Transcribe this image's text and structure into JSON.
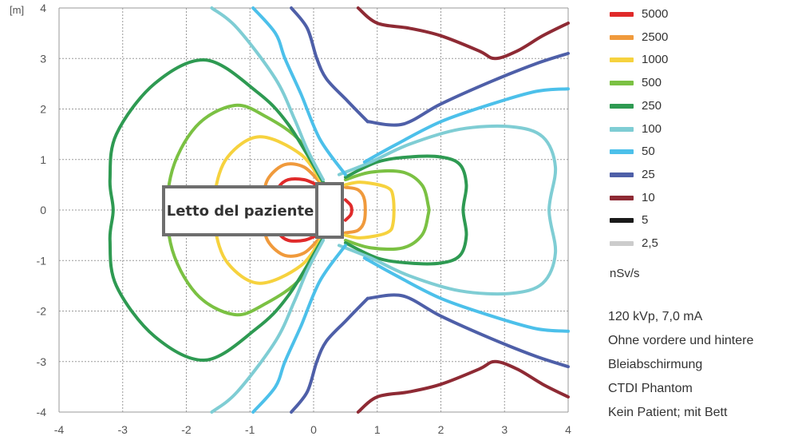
{
  "chart_data": {
    "type": "contour",
    "title": "",
    "xlabel": "",
    "ylabel": "[m]",
    "xlim": [
      -4,
      4
    ],
    "ylim": [
      -4,
      4
    ],
    "x_ticks": [
      -4,
      -3,
      -2,
      -1,
      0,
      1,
      2,
      3,
      4
    ],
    "y_ticks": [
      4,
      3,
      2,
      1,
      0,
      -1,
      -2,
      -3,
      -4
    ],
    "grid": true,
    "legend_position": "right",
    "unit": "nSv/s",
    "annotation": "Letto del paziente",
    "series": [
      {
        "name": "5000",
        "color": "#e02a2a"
      },
      {
        "name": "2500",
        "color": "#f09a3c"
      },
      {
        "name": "1000",
        "color": "#f6d23e"
      },
      {
        "name": "500",
        "color": "#7bc143"
      },
      {
        "name": "250",
        "color": "#2e9a52"
      },
      {
        "name": "100",
        "color": "#7fcdd4"
      },
      {
        "name": "50",
        "color": "#4cc0ea"
      },
      {
        "name": "25",
        "color": "#4e5fa8"
      },
      {
        "name": "10",
        "color": "#8e2a34"
      },
      {
        "name": "5",
        "color": "#1a1a1a"
      },
      {
        "name": "2,5",
        "color": "#cccccc"
      }
    ],
    "contours": [
      {
        "level": "5000",
        "paths": [
          [
            [
              0.05,
              0.5
            ],
            [
              -0.15,
              0.6
            ],
            [
              -0.4,
              0.6
            ],
            [
              -0.55,
              0.45
            ],
            [
              -0.58,
              0.25
            ],
            [
              -0.58,
              -0.25
            ],
            [
              -0.55,
              -0.45
            ],
            [
              -0.4,
              -0.6
            ],
            [
              -0.15,
              -0.6
            ],
            [
              0.05,
              -0.5
            ]
          ],
          [
            [
              0.5,
              0.2
            ],
            [
              0.58,
              0.1
            ],
            [
              0.6,
              0
            ],
            [
              0.58,
              -0.1
            ],
            [
              0.5,
              -0.2
            ]
          ]
        ]
      },
      {
        "level": "2500",
        "paths": [
          [
            [
              0.1,
              0.55
            ],
            [
              -0.15,
              0.85
            ],
            [
              -0.45,
              0.9
            ],
            [
              -0.7,
              0.65
            ],
            [
              -0.78,
              0.3
            ],
            [
              -0.78,
              -0.3
            ],
            [
              -0.7,
              -0.65
            ],
            [
              -0.45,
              -0.9
            ],
            [
              -0.15,
              -0.85
            ],
            [
              0.1,
              -0.55
            ]
          ],
          [
            [
              0.5,
              0.45
            ],
            [
              0.7,
              0.4
            ],
            [
              0.8,
              0.2
            ],
            [
              0.8,
              -0.2
            ],
            [
              0.7,
              -0.4
            ],
            [
              0.5,
              -0.45
            ]
          ]
        ]
      },
      {
        "level": "1000",
        "paths": [
          [
            [
              0.15,
              0.5
            ],
            [
              -0.2,
              1.1
            ],
            [
              -0.85,
              1.45
            ],
            [
              -1.35,
              1.05
            ],
            [
              -1.55,
              0.35
            ],
            [
              -1.55,
              -0.35
            ],
            [
              -1.35,
              -1.05
            ],
            [
              -0.85,
              -1.45
            ],
            [
              -0.2,
              -1.1
            ],
            [
              0.15,
              -0.5
            ]
          ],
          [
            [
              0.5,
              0.5
            ],
            [
              0.75,
              0.55
            ],
            [
              1.15,
              0.45
            ],
            [
              1.25,
              0.25
            ],
            [
              1.25,
              -0.25
            ],
            [
              1.15,
              -0.45
            ],
            [
              0.75,
              -0.55
            ],
            [
              0.5,
              -0.5
            ]
          ]
        ]
      },
      {
        "level": "500",
        "paths": [
          [
            [
              0.15,
              0.55
            ],
            [
              -0.2,
              1.35
            ],
            [
              -0.75,
              1.85
            ],
            [
              -1.25,
              2.07
            ],
            [
              -1.85,
              1.65
            ],
            [
              -2.25,
              0.65
            ],
            [
              -2.25,
              -0.65
            ],
            [
              -1.85,
              -1.65
            ],
            [
              -1.25,
              -2.07
            ],
            [
              -0.75,
              -1.85
            ],
            [
              -0.2,
              -1.35
            ],
            [
              0.15,
              -0.55
            ]
          ],
          [
            [
              0.5,
              0.6
            ],
            [
              0.9,
              0.75
            ],
            [
              1.4,
              0.75
            ],
            [
              1.7,
              0.5
            ],
            [
              1.8,
              0.1
            ],
            [
              1.8,
              -0.1
            ],
            [
              1.7,
              -0.5
            ],
            [
              1.4,
              -0.75
            ],
            [
              0.9,
              -0.75
            ],
            [
              0.5,
              -0.6
            ]
          ]
        ]
      },
      {
        "level": "250",
        "paths": [
          [
            [
              0.15,
              0.55
            ],
            [
              -0.4,
              1.7
            ],
            [
              -0.9,
              2.35
            ],
            [
              -1.7,
              2.97
            ],
            [
              -2.5,
              2.5
            ],
            [
              -3.1,
              1.5
            ],
            [
              -3.2,
              0.6
            ],
            [
              -3.15,
              0
            ],
            [
              -3.2,
              -0.6
            ],
            [
              -3.1,
              -1.5
            ],
            [
              -2.5,
              -2.5
            ],
            [
              -1.7,
              -2.97
            ],
            [
              -0.9,
              -2.35
            ],
            [
              -0.4,
              -1.7
            ],
            [
              0.15,
              -0.55
            ]
          ],
          [
            [
              0.5,
              0.65
            ],
            [
              1.0,
              0.95
            ],
            [
              1.5,
              1.05
            ],
            [
              2.0,
              1.05
            ],
            [
              2.3,
              0.9
            ],
            [
              2.4,
              0.5
            ],
            [
              2.35,
              0
            ],
            [
              2.4,
              -0.5
            ],
            [
              2.3,
              -0.9
            ],
            [
              2.0,
              -1.05
            ],
            [
              1.5,
              -1.05
            ],
            [
              1.0,
              -0.95
            ],
            [
              0.5,
              -0.65
            ]
          ]
        ]
      },
      {
        "level": "100",
        "paths": [
          [
            [
              0.15,
              0.6
            ],
            [
              -0.1,
              1.2
            ],
            [
              -0.3,
              1.8
            ],
            [
              -0.6,
              2.6
            ],
            [
              -1.2,
              3.6
            ],
            [
              -1.6,
              4.0
            ]
          ],
          [
            [
              0.15,
              -0.6
            ],
            [
              -0.1,
              -1.2
            ],
            [
              -0.3,
              -1.8
            ],
            [
              -0.6,
              -2.6
            ],
            [
              -1.2,
              -3.6
            ],
            [
              -1.6,
              -4.0
            ]
          ],
          [
            [
              0.4,
              0.7
            ],
            [
              0.9,
              0.95
            ],
            [
              1.5,
              1.3
            ],
            [
              2.3,
              1.6
            ],
            [
              3.1,
              1.65
            ],
            [
              3.6,
              1.45
            ],
            [
              3.8,
              0.85
            ],
            [
              3.7,
              0
            ],
            [
              3.8,
              -0.85
            ],
            [
              3.6,
              -1.45
            ],
            [
              3.1,
              -1.65
            ],
            [
              2.3,
              -1.6
            ],
            [
              1.5,
              -1.3
            ],
            [
              0.9,
              -0.95
            ],
            [
              0.4,
              -0.7
            ]
          ]
        ]
      },
      {
        "level": "50",
        "paths": [
          [
            [
              0.5,
              0.7
            ],
            [
              0.1,
              1.4
            ],
            [
              -0.2,
              2.3
            ],
            [
              -0.45,
              3.0
            ],
            [
              -0.6,
              3.5
            ],
            [
              -0.95,
              4.0
            ]
          ],
          [
            [
              0.5,
              -0.7
            ],
            [
              0.1,
              -1.4
            ],
            [
              -0.2,
              -2.3
            ],
            [
              -0.45,
              -3.0
            ],
            [
              -0.6,
              -3.5
            ],
            [
              -0.95,
              -4.0
            ]
          ],
          [
            [
              0.8,
              0.95
            ],
            [
              1.3,
              1.3
            ],
            [
              2.0,
              1.75
            ],
            [
              2.8,
              2.1
            ],
            [
              3.5,
              2.35
            ],
            [
              4.0,
              2.4
            ]
          ],
          [
            [
              0.8,
              -0.95
            ],
            [
              1.3,
              -1.3
            ],
            [
              2.0,
              -1.75
            ],
            [
              2.8,
              -2.1
            ],
            [
              3.5,
              -2.35
            ],
            [
              4.0,
              -2.4
            ]
          ]
        ]
      },
      {
        "level": "25",
        "paths": [
          [
            [
              0.85,
              1.75
            ],
            [
              0.5,
              2.2
            ],
            [
              0.2,
              2.6
            ],
            [
              0.05,
              3.0
            ],
            [
              -0.1,
              3.6
            ],
            [
              -0.35,
              4.0
            ]
          ],
          [
            [
              0.85,
              -1.75
            ],
            [
              0.5,
              -2.2
            ],
            [
              0.2,
              -2.6
            ],
            [
              0.05,
              -3.0
            ],
            [
              -0.1,
              -3.6
            ],
            [
              -0.35,
              -4.0
            ]
          ],
          [
            [
              0.85,
              1.75
            ],
            [
              1.4,
              1.7
            ],
            [
              2.0,
              2.1
            ],
            [
              2.8,
              2.55
            ],
            [
              3.5,
              2.9
            ],
            [
              4.0,
              3.1
            ]
          ],
          [
            [
              0.85,
              -1.75
            ],
            [
              1.4,
              -1.7
            ],
            [
              2.0,
              -2.1
            ],
            [
              2.8,
              -2.55
            ],
            [
              3.5,
              -2.9
            ],
            [
              4.0,
              -3.1
            ]
          ]
        ]
      },
      {
        "level": "10",
        "paths": [
          [
            [
              0.7,
              4.0
            ],
            [
              1.0,
              3.7
            ],
            [
              1.5,
              3.6
            ],
            [
              2.0,
              3.45
            ],
            [
              2.6,
              3.15
            ],
            [
              2.85,
              3.0
            ],
            [
              3.2,
              3.15
            ],
            [
              3.6,
              3.45
            ],
            [
              4.0,
              3.7
            ]
          ],
          [
            [
              0.7,
              -4.0
            ],
            [
              1.0,
              -3.7
            ],
            [
              1.5,
              -3.6
            ],
            [
              2.0,
              -3.45
            ],
            [
              2.6,
              -3.15
            ],
            [
              2.85,
              -3.0
            ],
            [
              3.2,
              -3.15
            ],
            [
              3.6,
              -3.45
            ],
            [
              4.0,
              -3.7
            ]
          ]
        ]
      }
    ]
  },
  "notes": [
    "120 kVp, 7,0 mA",
    "Ohne vordere und hintere",
    "Bleiabschirmung",
    "CTDI Phantom",
    "Kein Patient; mit Bett"
  ]
}
